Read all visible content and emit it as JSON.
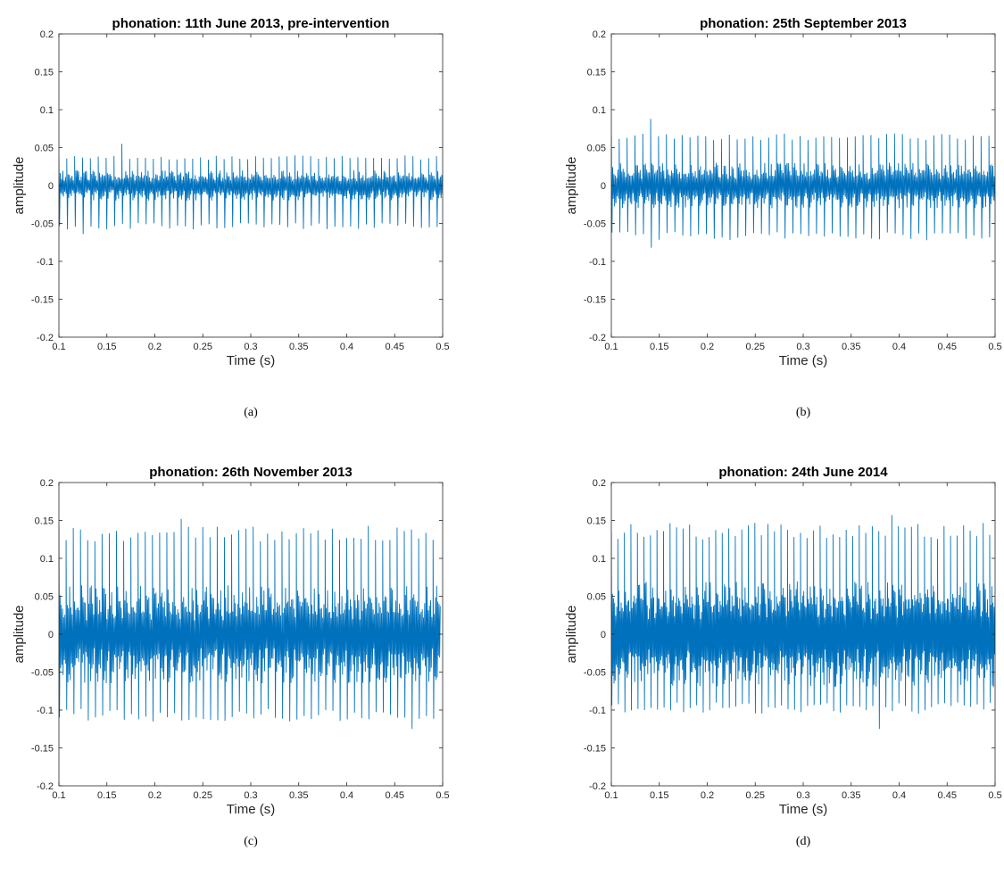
{
  "chart_data": [
    {
      "type": "line",
      "panel": "(a)",
      "caption": "(a)",
      "title": "phonation: 11th June 2013, pre-intervention",
      "xlabel": "Time (s)",
      "ylabel": "amplitude",
      "xlim": [
        0.1,
        0.5
      ],
      "ylim": [
        -0.2,
        0.2
      ],
      "xticks": [
        "0.1",
        "0.15",
        "0.2",
        "0.25",
        "0.3",
        "0.35",
        "0.4",
        "0.45",
        "0.5"
      ],
      "yticks": [
        "-0.2",
        "-0.15",
        "-0.1",
        "-0.05",
        "0",
        "0.05",
        "0.1",
        "0.15",
        "0.2"
      ],
      "grid": false,
      "color": "#0072BD",
      "signal": {
        "period_s": 0.0082,
        "peak_max": 0.04,
        "trough_min": -0.058,
        "ripple_upper": 0.02,
        "ripple_lower": -0.02,
        "global_max": 0.055,
        "global_min": -0.064
      }
    },
    {
      "type": "line",
      "panel": "(b)",
      "caption": "(b)",
      "title": "phonation: 25th September 2013",
      "xlabel": "Time (s)",
      "ylabel": "amplitude",
      "xlim": [
        0.1,
        0.5
      ],
      "ylim": [
        -0.2,
        0.2
      ],
      "xticks": [
        "0.1",
        "0.15",
        "0.2",
        "0.25",
        "0.3",
        "0.35",
        "0.4",
        "0.45",
        "0.5"
      ],
      "yticks": [
        "-0.2",
        "-0.15",
        "-0.1",
        "-0.05",
        "0",
        "0.05",
        "0.1",
        "0.15",
        "0.2"
      ],
      "grid": false,
      "color": "#0072BD",
      "signal": {
        "period_s": 0.0082,
        "peak_max": 0.07,
        "trough_min": -0.072,
        "ripple_upper": 0.03,
        "ripple_lower": -0.03,
        "global_max": 0.088,
        "global_min": -0.082
      }
    },
    {
      "type": "line",
      "panel": "(c)",
      "caption": "(c)",
      "title": "phonation: 26th November 2013",
      "xlabel": "Time (s)",
      "ylabel": "amplitude",
      "xlim": [
        0.1,
        0.5
      ],
      "ylim": [
        -0.2,
        0.2
      ],
      "xticks": [
        "0.1",
        "0.15",
        "0.2",
        "0.25",
        "0.3",
        "0.35",
        "0.4",
        "0.45",
        "0.5"
      ],
      "yticks": [
        "-0.2",
        "-0.15",
        "-0.1",
        "-0.05",
        "0",
        "0.05",
        "0.1",
        "0.15",
        "0.2"
      ],
      "grid": false,
      "color": "#0072BD",
      "signal": {
        "period_s": 0.0075,
        "peak_max": 0.143,
        "trough_min": -0.115,
        "ripple_upper": 0.065,
        "ripple_lower": -0.065,
        "global_max": 0.152,
        "global_min": -0.125
      }
    },
    {
      "type": "line",
      "panel": "(d)",
      "caption": "(d)",
      "title": "phonation: 24th June 2014",
      "xlabel": "Time (s)",
      "ylabel": "amplitude",
      "xlim": [
        0.1,
        0.5
      ],
      "ylim": [
        -0.2,
        0.2
      ],
      "xticks": [
        "0.1",
        "0.15",
        "0.2",
        "0.25",
        "0.3",
        "0.35",
        "0.4",
        "0.45",
        "0.5"
      ],
      "yticks": [
        "-0.2",
        "-0.15",
        "-0.1",
        "-0.05",
        "0",
        "0.05",
        "0.1",
        "0.15",
        "0.2"
      ],
      "grid": false,
      "color": "#0072BD",
      "signal": {
        "period_s": 0.0068,
        "peak_max": 0.147,
        "trough_min": -0.105,
        "ripple_upper": 0.07,
        "ripple_lower": -0.07,
        "global_max": 0.157,
        "global_min": -0.125
      }
    }
  ]
}
